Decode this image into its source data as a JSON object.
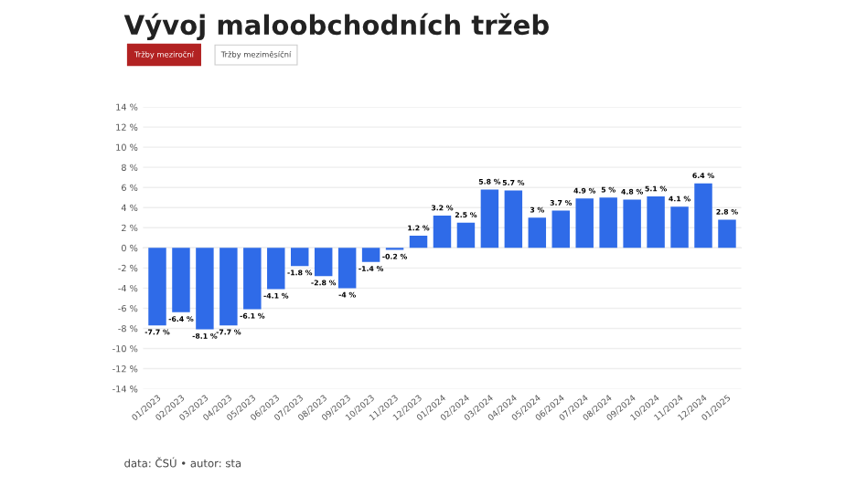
{
  "chart_data": {
    "type": "bar",
    "title": "Vývoj maloobchodních tržeb",
    "annotations": [
      "Tržby meziroční",
      "Tržby meziměsíční",
      "data: ČSÚ • autor: sta"
    ],
    "categories": [
      "01/2023",
      "02/2023",
      "03/2023",
      "04/2023",
      "05/2023",
      "06/2023",
      "07/2023",
      "08/2023",
      "09/2023",
      "10/2023",
      "11/2023",
      "12/2023",
      "01/2024",
      "02/2024",
      "03/2024",
      "04/2024",
      "05/2024",
      "06/2024",
      "07/2024",
      "08/2024",
      "09/2024",
      "10/2024",
      "11/2024",
      "12/2024",
      "01/2025"
    ],
    "values": [
      -7.7,
      -6.4,
      -8.1,
      -7.7,
      -6.1,
      -4.1,
      -1.8,
      -2.8,
      -4,
      -1.4,
      -0.2,
      1.2,
      3.2,
      2.5,
      5.8,
      5.7,
      3,
      3.7,
      4.9,
      5,
      4.8,
      5.1,
      4.1,
      6.4,
      2.8
    ],
    "value_labels": [
      "-7.7 %",
      "-6.4 %",
      "-8.1 %",
      "-7.7 %",
      "-6.1 %",
      "-4.1 %",
      "-1.8 %",
      "-2.8 %",
      "-4 %",
      "-1.4 %",
      "-0.2 %",
      "1.2 %",
      "3.2 %",
      "2.5 %",
      "5.8 %",
      "5.7 %",
      "3 %",
      "3.7 %",
      "4.9 %",
      "5 %",
      "4.8 %",
      "5.1 %",
      "4.1 %",
      "6.4 %",
      "2.8 %"
    ],
    "color": "#2f6be8",
    "ylim": [
      -14,
      14
    ],
    "yticks": [
      {
        "value": -14,
        "label": "-14 %"
      },
      {
        "value": -12,
        "label": "-12 %"
      },
      {
        "value": -10,
        "label": "-10 %"
      },
      {
        "value": -8,
        "label": "-8 %"
      },
      {
        "value": -6,
        "label": "-6 %"
      },
      {
        "value": -4,
        "label": "-4 %"
      },
      {
        "value": -2,
        "label": "-2 %"
      },
      {
        "value": 0,
        "label": "0 %"
      },
      {
        "value": 2,
        "label": "2 %"
      },
      {
        "value": 4,
        "label": "4 %"
      },
      {
        "value": 6,
        "label": "6 %"
      },
      {
        "value": 8,
        "label": "8 %"
      },
      {
        "value": 10,
        "label": "10 %"
      },
      {
        "value": 12,
        "label": "12 %"
      },
      {
        "value": 14,
        "label": "14 %"
      }
    ],
    "grid": "y"
  }
}
